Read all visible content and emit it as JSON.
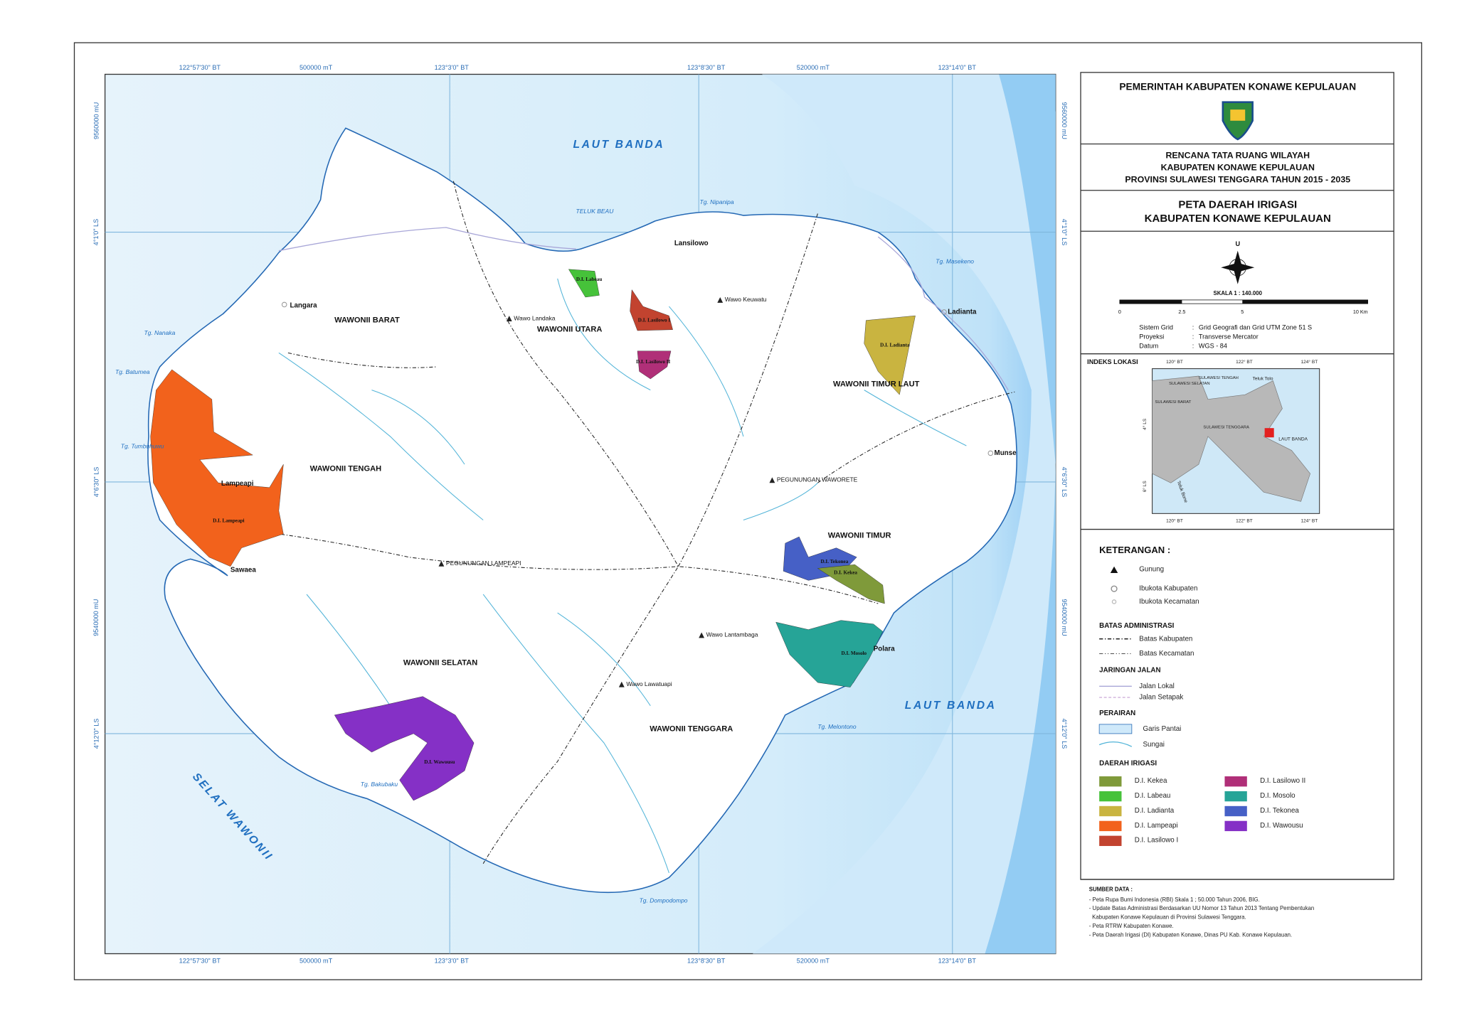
{
  "grid_labels": {
    "top": [
      "122°57'30\" BT",
      "500000 mT",
      "123°3'0\" BT",
      "123°8'30\" BT",
      "520000 mT",
      "123°14'0\" BT"
    ],
    "side": [
      "9560000 mU",
      "4°1'0\" LS",
      "4°6'30\" LS",
      "9540000 mU",
      "4°12'0\" LS"
    ]
  },
  "seas": [
    "LAUT BANDA",
    "TELUK BEAU",
    "LAUT BANDA",
    "SELAT WAWONII"
  ],
  "districts": [
    "WAWONII BARAT",
    "WAWONII UTARA",
    "WAWONII TIMUR LAUT",
    "WAWONII TENGAH",
    "WAWONII TIMUR",
    "WAWONII SELATAN",
    "WAWONII TENGGARA"
  ],
  "places": [
    "Langara",
    "Lansilowo",
    "Ladianta",
    "Munse",
    "Lampeapi",
    "Sawaea",
    "Polara"
  ],
  "capes": [
    "Tg. Nipanipa",
    "Tg. Masekeno",
    "Tg. Nanaka",
    "Tg. Batumea",
    "Tg. Tumbuhuwu",
    "Tg. Melontono",
    "Tg. Bakubaku",
    "Tg. Dompodompo"
  ],
  "mountains": [
    "Wawo Landaka",
    "Wawo Keuwatu",
    "PEGUNUNGAN WAWORETE",
    "PEGUNUNGAN LAMPEAPI",
    "Wawo Lantambaga",
    "Wawo Lawatuapi"
  ],
  "irrigation_labels": [
    "D.I. Labeau",
    "D.I. Lasilowo I",
    "D.I. Lasilowo II",
    "D.I. Ladianta",
    "D.I. Lampeapi",
    "D.I. Tekonea",
    "D.I. Kekea",
    "D.I. Mosolo",
    "D.I. Wawousu"
  ],
  "panel": {
    "header": "PEMERINTAH KABUPATEN KONAWE KEPULAUAN",
    "plan": [
      "RENCANA TATA RUANG WILAYAH",
      "KABUPATEN KONAWE KEPULAUAN",
      "PROVINSI SULAWESI TENGGARA TAHUN 2015 - 2035"
    ],
    "title": [
      "PETA DAERAH IRIGASI",
      "KABUPATEN KONAWE KEPULAUAN"
    ],
    "north": "U",
    "scale": "SKALA  1 : 140.000",
    "scale_ticks": [
      "0",
      "2.5",
      "5",
      "10 Km"
    ],
    "grid_info": [
      [
        "Sistem Grid",
        ":",
        "Grid Geografi dan Grid UTM Zone 51 S"
      ],
      [
        "Proyeksi",
        ":",
        "Transverse Mercator"
      ],
      [
        "Datum",
        ":",
        "WGS - 84"
      ]
    ],
    "index_title": "INDEKS LOKASI",
    "index_labels": [
      "120° BT",
      "122° BT",
      "124° BT",
      "4° LS",
      "6° LS",
      "SULAWESI TENGAH",
      "SULAWESI SELATAN",
      "SULAWESI BARAT",
      "SULAWESI TENGGARA",
      "Teluk Tolo",
      "LAUT BANDA",
      "Teluk Bone"
    ],
    "legend_title": "KETERANGAN :",
    "symbols": [
      "Gunung",
      "Ibukota Kabupaten",
      "Ibukota Kecamatan"
    ],
    "admin_title": "BATAS ADMINISTRASI",
    "admin": [
      "Batas Kabupaten",
      "Batas Kecamatan"
    ],
    "road_title": "JARINGAN JALAN",
    "roads": [
      "Jalan Lokal",
      "Jalan Setapak"
    ],
    "water_title": "PERAIRAN",
    "water": [
      "Garis Pantai",
      "Sungai"
    ],
    "irrigation_title": "DAERAH IRIGASI",
    "irrigation": [
      {
        "name": "D.I. Kekea",
        "color": "#7f9a3a"
      },
      {
        "name": "D.I. Labeau",
        "color": "#46c23a"
      },
      {
        "name": "D.I. Ladianta",
        "color": "#c9b440"
      },
      {
        "name": "D.I. Lampeapi",
        "color": "#f2621c"
      },
      {
        "name": "D.I. Lasilowo I",
        "color": "#c2432f"
      },
      {
        "name": "D.I. Lasilowo II",
        "color": "#b02f78"
      },
      {
        "name": "D.I. Mosolo",
        "color": "#26a497"
      },
      {
        "name": "D.I. Tekonea",
        "color": "#4660c6"
      },
      {
        "name": "D.I. Wawousu",
        "color": "#8530c6"
      }
    ],
    "sources_title": "SUMBER DATA :",
    "sources": [
      "- Peta Rupa Bumi Indonesia (RBI) Skala 1 ; 50.000 Tahun 2006, BIG.",
      "- Update Batas Administrasi Berdasarkan UU Nomor 13 Tahun 2013 Tentang Pembentukan",
      "  Kabupaten Konawe Kepulauan di Provinsi Sulawesi Tenggara.",
      "- Peta RTRW Kabupaten Konawe.",
      "- Peta Daerah Irigasi (DI) Kabupaten Konawe, Dinas PU Kab. Konawe Kepulauan."
    ]
  }
}
